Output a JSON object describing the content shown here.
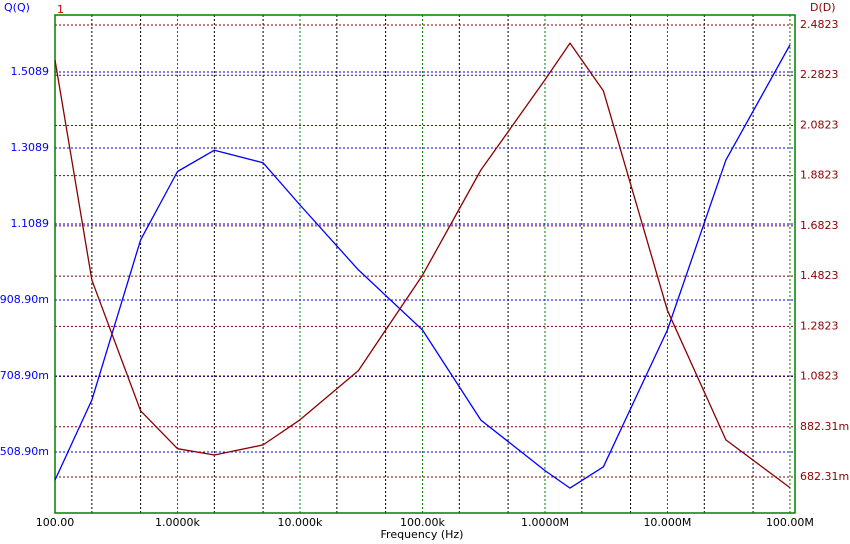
{
  "chart_data": {
    "type": "line",
    "x_label": "Frequency (Hz)",
    "y_label": "Q(Q)",
    "y2_label": "D(D)",
    "annotation": "1",
    "xscale": "log",
    "xlim": [
      100,
      110000000
    ],
    "xticks": [
      {
        "value": 100,
        "label": "100.00"
      },
      {
        "value": 1000,
        "label": "1.0000k"
      },
      {
        "value": 10000,
        "label": "10.000k"
      },
      {
        "value": 100000,
        "label": "100.00k"
      },
      {
        "value": 1000000,
        "label": "1.0000M"
      },
      {
        "value": 10000000,
        "label": "10.000M"
      },
      {
        "value": 100000000,
        "label": "100.00M"
      }
    ],
    "xgrid": [
      200,
      500,
      2000,
      5000,
      20000,
      50000,
      200000,
      500000,
      2000000,
      5000000,
      20000000,
      50000000
    ],
    "ylim": [
      0.3484,
      1.6589
    ],
    "yticks": [
      {
        "value": 0.5089,
        "label": "508.90m"
      },
      {
        "value": 0.7089,
        "label": "708.90m"
      },
      {
        "value": 0.9089,
        "label": "908.90m"
      },
      {
        "value": 1.1089,
        "label": "1.1089"
      },
      {
        "value": 1.3089,
        "label": "1.3089"
      },
      {
        "value": 1.5089,
        "label": "1.5089"
      }
    ],
    "y2lim": [
      0.5389,
      2.5221
    ],
    "y2ticks": [
      {
        "value": 0.68231,
        "label": "682.31m"
      },
      {
        "value": 0.88231,
        "label": "882.31m"
      },
      {
        "value": 1.0823,
        "label": "1.0823"
      },
      {
        "value": 1.2823,
        "label": "1.2823"
      },
      {
        "value": 1.4823,
        "label": "1.4823"
      },
      {
        "value": 1.6823,
        "label": "1.6823"
      },
      {
        "value": 1.8823,
        "label": "1.8823"
      },
      {
        "value": 2.0823,
        "label": "2.0823"
      },
      {
        "value": 2.2823,
        "label": "2.2823"
      },
      {
        "value": 2.4823,
        "label": "2.4823"
      }
    ],
    "grid": true,
    "x": [
      100,
      200,
      500,
      1000,
      2000,
      5000,
      10000,
      30000,
      100000,
      300000,
      1000000,
      1600000,
      3000000,
      10000000,
      30000000,
      100000000
    ],
    "series": [
      {
        "name": "Q",
        "color": "#0000ff",
        "axis": "y",
        "values": [
          0.435,
          0.646,
          1.067,
          1.247,
          1.303,
          1.27,
          1.159,
          0.988,
          0.83,
          0.593,
          0.46,
          0.414,
          0.47,
          0.83,
          1.277,
          1.58
        ]
      },
      {
        "name": "D",
        "color": "#8b0000",
        "axis": "y2",
        "values": [
          2.343,
          1.466,
          0.946,
          0.795,
          0.77,
          0.81,
          0.91,
          1.106,
          1.486,
          1.905,
          2.264,
          2.41,
          2.22,
          1.346,
          0.83,
          0.64
        ]
      }
    ]
  }
}
